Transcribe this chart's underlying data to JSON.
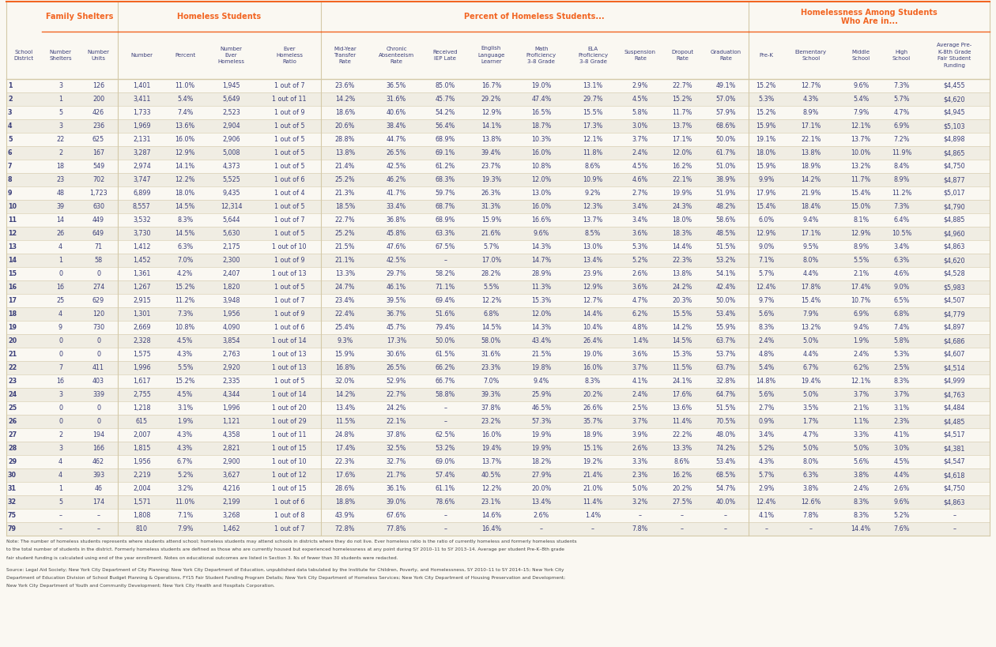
{
  "header_color": "#F26522",
  "bg_color": "#FAF8F2",
  "row_bg_even": "#FAF8F2",
  "row_bg_odd": "#F0EDE3",
  "text_color": "#3B3F7A",
  "line_color": "#D4C9A8",
  "group_defs": [
    [
      1,
      2,
      "Family Shelters"
    ],
    [
      3,
      6,
      "Homeless Students"
    ],
    [
      7,
      15,
      "Percent of Homeless Students..."
    ],
    [
      16,
      20,
      "Homelessness Among Students\nWho Are in..."
    ]
  ],
  "col_header_texts": [
    "School\nDistrict",
    "Number\nShelters",
    "Number\nUnits",
    "Number",
    "Percent",
    "Number\nEver\nHomeless",
    "Ever\nHomeless\nRatio",
    "Mid-Year\nTransfer\nRate",
    "Chronic\nAbsenteeism\nRate",
    "Received\nIEP Late",
    "English\nLanguage\nLearner",
    "Math\nProficiency\n3-8 Grade",
    "ELA\nProficiency\n3-8 Grade",
    "Suspension\nRate",
    "Dropout\nRate",
    "Graduation\nRate",
    "Pre-K",
    "Elementary\nSchool",
    "Middle\nSchool",
    "High\nSchool",
    "Average Pre-\nK-8th Grade\nFair Student\nFunding"
  ],
  "col_widths_raw": [
    26,
    28,
    28,
    36,
    28,
    40,
    46,
    36,
    40,
    32,
    36,
    38,
    38,
    32,
    30,
    34,
    26,
    40,
    34,
    26,
    52
  ],
  "rows": [
    [
      "1",
      "3",
      "126",
      "1,401",
      "11.0%",
      "1,945",
      "1 out of 7",
      "23.6%",
      "36.5%",
      "85.0%",
      "16.7%",
      "19.0%",
      "13.1%",
      "2.9%",
      "22.7%",
      "49.1%",
      "15.2%",
      "12.7%",
      "9.6%",
      "7.3%",
      "$4,455"
    ],
    [
      "2",
      "1",
      "200",
      "3,411",
      "5.4%",
      "5,649",
      "1 out of 11",
      "14.2%",
      "31.6%",
      "45.7%",
      "29.2%",
      "47.4%",
      "29.7%",
      "4.5%",
      "15.2%",
      "57.0%",
      "5.3%",
      "4.3%",
      "5.4%",
      "5.7%",
      "$4,620"
    ],
    [
      "3",
      "5",
      "426",
      "1,733",
      "7.4%",
      "2,523",
      "1 out of 9",
      "18.6%",
      "40.6%",
      "54.2%",
      "12.9%",
      "16.5%",
      "15.5%",
      "5.8%",
      "11.7%",
      "57.9%",
      "15.2%",
      "8.9%",
      "7.9%",
      "4.7%",
      "$4,945"
    ],
    [
      "4",
      "3",
      "236",
      "1,969",
      "13.6%",
      "2,904",
      "1 out of 5",
      "20.6%",
      "38.4%",
      "56.4%",
      "14.1%",
      "18.7%",
      "17.3%",
      "3.0%",
      "13.7%",
      "68.6%",
      "15.9%",
      "17.1%",
      "12.1%",
      "6.9%",
      "$5,103"
    ],
    [
      "5",
      "22",
      "625",
      "2,131",
      "16.0%",
      "2,906",
      "1 out of 5",
      "28.8%",
      "44.7%",
      "68.9%",
      "13.8%",
      "10.3%",
      "12.1%",
      "3.7%",
      "17.1%",
      "50.0%",
      "19.1%",
      "22.1%",
      "13.7%",
      "7.2%",
      "$4,898"
    ],
    [
      "6",
      "2",
      "167",
      "3,287",
      "12.9%",
      "5,008",
      "1 out of 5",
      "13.8%",
      "26.5%",
      "69.1%",
      "39.4%",
      "16.0%",
      "11.8%",
      "2.4%",
      "12.0%",
      "61.7%",
      "18.0%",
      "13.8%",
      "10.0%",
      "11.9%",
      "$4,865"
    ],
    [
      "7",
      "18",
      "549",
      "2,974",
      "14.1%",
      "4,373",
      "1 out of 5",
      "21.4%",
      "42.5%",
      "61.2%",
      "23.7%",
      "10.8%",
      "8.6%",
      "4.5%",
      "16.2%",
      "51.0%",
      "15.9%",
      "18.9%",
      "13.2%",
      "8.4%",
      "$4,750"
    ],
    [
      "8",
      "23",
      "702",
      "3,747",
      "12.2%",
      "5,525",
      "1 out of 6",
      "25.2%",
      "46.2%",
      "68.3%",
      "19.3%",
      "12.0%",
      "10.9%",
      "4.6%",
      "22.1%",
      "38.9%",
      "9.9%",
      "14.2%",
      "11.7%",
      "8.9%",
      "$4,877"
    ],
    [
      "9",
      "48",
      "1,723",
      "6,899",
      "18.0%",
      "9,435",
      "1 out of 4",
      "21.3%",
      "41.7%",
      "59.7%",
      "26.3%",
      "13.0%",
      "9.2%",
      "2.7%",
      "19.9%",
      "51.9%",
      "17.9%",
      "21.9%",
      "15.4%",
      "11.2%",
      "$5,017"
    ],
    [
      "10",
      "39",
      "630",
      "8,557",
      "14.5%",
      "12,314",
      "1 out of 5",
      "18.5%",
      "33.4%",
      "68.7%",
      "31.3%",
      "16.0%",
      "12.3%",
      "3.4%",
      "24.3%",
      "48.2%",
      "15.4%",
      "18.4%",
      "15.0%",
      "7.3%",
      "$4,790"
    ],
    [
      "11",
      "14",
      "449",
      "3,532",
      "8.3%",
      "5,644",
      "1 out of 7",
      "22.7%",
      "36.8%",
      "68.9%",
      "15.9%",
      "16.6%",
      "13.7%",
      "3.4%",
      "18.0%",
      "58.6%",
      "6.0%",
      "9.4%",
      "8.1%",
      "6.4%",
      "$4,885"
    ],
    [
      "12",
      "26",
      "649",
      "3,730",
      "14.5%",
      "5,630",
      "1 out of 5",
      "25.2%",
      "45.8%",
      "63.3%",
      "21.6%",
      "9.6%",
      "8.5%",
      "3.6%",
      "18.3%",
      "48.5%",
      "12.9%",
      "17.1%",
      "12.9%",
      "10.5%",
      "$4,960"
    ],
    [
      "13",
      "4",
      "71",
      "1,412",
      "6.3%",
      "2,175",
      "1 out of 10",
      "21.5%",
      "47.6%",
      "67.5%",
      "5.7%",
      "14.3%",
      "13.0%",
      "5.3%",
      "14.4%",
      "51.5%",
      "9.0%",
      "9.5%",
      "8.9%",
      "3.4%",
      "$4,863"
    ],
    [
      "14",
      "1",
      "58",
      "1,452",
      "7.0%",
      "2,300",
      "1 out of 9",
      "21.1%",
      "42.5%",
      "–",
      "17.0%",
      "14.7%",
      "13.4%",
      "5.2%",
      "22.3%",
      "53.2%",
      "7.1%",
      "8.0%",
      "5.5%",
      "6.3%",
      "$4,620"
    ],
    [
      "15",
      "0",
      "0",
      "1,361",
      "4.2%",
      "2,407",
      "1 out of 13",
      "13.3%",
      "29.7%",
      "58.2%",
      "28.2%",
      "28.9%",
      "23.9%",
      "2.6%",
      "13.8%",
      "54.1%",
      "5.7%",
      "4.4%",
      "2.1%",
      "4.6%",
      "$4,528"
    ],
    [
      "16",
      "16",
      "274",
      "1,267",
      "15.2%",
      "1,820",
      "1 out of 5",
      "24.7%",
      "46.1%",
      "71.1%",
      "5.5%",
      "11.3%",
      "12.9%",
      "3.6%",
      "24.2%",
      "42.4%",
      "12.4%",
      "17.8%",
      "17.4%",
      "9.0%",
      "$5,983"
    ],
    [
      "17",
      "25",
      "629",
      "2,915",
      "11.2%",
      "3,948",
      "1 out of 7",
      "23.4%",
      "39.5%",
      "69.4%",
      "12.2%",
      "15.3%",
      "12.7%",
      "4.7%",
      "20.3%",
      "50.0%",
      "9.7%",
      "15.4%",
      "10.7%",
      "6.5%",
      "$4,507"
    ],
    [
      "18",
      "4",
      "120",
      "1,301",
      "7.3%",
      "1,956",
      "1 out of 9",
      "22.4%",
      "36.7%",
      "51.6%",
      "6.8%",
      "12.0%",
      "14.4%",
      "6.2%",
      "15.5%",
      "53.4%",
      "5.6%",
      "7.9%",
      "6.9%",
      "6.8%",
      "$4,779"
    ],
    [
      "19",
      "9",
      "730",
      "2,669",
      "10.8%",
      "4,090",
      "1 out of 6",
      "25.4%",
      "45.7%",
      "79.4%",
      "14.5%",
      "14.3%",
      "10.4%",
      "4.8%",
      "14.2%",
      "55.9%",
      "8.3%",
      "13.2%",
      "9.4%",
      "7.4%",
      "$4,897"
    ],
    [
      "20",
      "0",
      "0",
      "2,328",
      "4.5%",
      "3,854",
      "1 out of 14",
      "9.3%",
      "17.3%",
      "50.0%",
      "58.0%",
      "43.4%",
      "26.4%",
      "1.4%",
      "14.5%",
      "63.7%",
      "2.4%",
      "5.0%",
      "1.9%",
      "5.8%",
      "$4,686"
    ],
    [
      "21",
      "0",
      "0",
      "1,575",
      "4.3%",
      "2,763",
      "1 out of 13",
      "15.9%",
      "30.6%",
      "61.5%",
      "31.6%",
      "21.5%",
      "19.0%",
      "3.6%",
      "15.3%",
      "53.7%",
      "4.8%",
      "4.4%",
      "2.4%",
      "5.3%",
      "$4,607"
    ],
    [
      "22",
      "7",
      "411",
      "1,996",
      "5.5%",
      "2,920",
      "1 out of 13",
      "16.8%",
      "26.5%",
      "66.2%",
      "23.3%",
      "19.8%",
      "16.0%",
      "3.7%",
      "11.5%",
      "63.7%",
      "5.4%",
      "6.7%",
      "6.2%",
      "2.5%",
      "$4,514"
    ],
    [
      "23",
      "16",
      "403",
      "1,617",
      "15.2%",
      "2,335",
      "1 out of 5",
      "32.0%",
      "52.9%",
      "66.7%",
      "7.0%",
      "9.4%",
      "8.3%",
      "4.1%",
      "24.1%",
      "32.8%",
      "14.8%",
      "19.4%",
      "12.1%",
      "8.3%",
      "$4,999"
    ],
    [
      "24",
      "3",
      "339",
      "2,755",
      "4.5%",
      "4,344",
      "1 out of 14",
      "14.2%",
      "22.7%",
      "58.8%",
      "39.3%",
      "25.9%",
      "20.2%",
      "2.4%",
      "17.6%",
      "64.7%",
      "5.6%",
      "5.0%",
      "3.7%",
      "3.7%",
      "$4,763"
    ],
    [
      "25",
      "0",
      "0",
      "1,218",
      "3.1%",
      "1,996",
      "1 out of 20",
      "13.4%",
      "24.2%",
      "–",
      "37.8%",
      "46.5%",
      "26.6%",
      "2.5%",
      "13.6%",
      "51.5%",
      "2.7%",
      "3.5%",
      "2.1%",
      "3.1%",
      "$4,484"
    ],
    [
      "26",
      "0",
      "0",
      "615",
      "1.9%",
      "1,121",
      "1 out of 29",
      "11.5%",
      "22.1%",
      "–",
      "23.2%",
      "57.3%",
      "35.7%",
      "3.7%",
      "11.4%",
      "70.5%",
      "0.9%",
      "1.7%",
      "1.1%",
      "2.3%",
      "$4,485"
    ],
    [
      "27",
      "2",
      "194",
      "2,007",
      "4.3%",
      "4,358",
      "1 out of 11",
      "24.8%",
      "37.8%",
      "62.5%",
      "16.0%",
      "19.9%",
      "18.9%",
      "3.9%",
      "22.2%",
      "48.0%",
      "3.4%",
      "4.7%",
      "3.3%",
      "4.1%",
      "$4,517"
    ],
    [
      "28",
      "3",
      "166",
      "1,815",
      "4.3%",
      "2,821",
      "1 out of 15",
      "17.4%",
      "32.5%",
      "53.2%",
      "19.4%",
      "19.9%",
      "15.1%",
      "2.6%",
      "13.3%",
      "74.2%",
      "5.2%",
      "5.0%",
      "5.0%",
      "3.0%",
      "$4,381"
    ],
    [
      "29",
      "4",
      "462",
      "1,956",
      "6.7%",
      "2,900",
      "1 out of 10",
      "22.3%",
      "32.7%",
      "69.0%",
      "13.7%",
      "18.2%",
      "19.2%",
      "3.3%",
      "8.6%",
      "53.4%",
      "4.3%",
      "8.0%",
      "5.6%",
      "4.5%",
      "$4,547"
    ],
    [
      "30",
      "4",
      "393",
      "2,219",
      "5.2%",
      "3,627",
      "1 out of 12",
      "17.6%",
      "21.7%",
      "57.4%",
      "40.5%",
      "27.9%",
      "21.4%",
      "2.3%",
      "16.2%",
      "68.5%",
      "5.7%",
      "6.3%",
      "3.8%",
      "4.4%",
      "$4,618"
    ],
    [
      "31",
      "1",
      "46",
      "2,004",
      "3.2%",
      "4,216",
      "1 out of 15",
      "28.6%",
      "36.1%",
      "61.1%",
      "12.2%",
      "20.0%",
      "21.0%",
      "5.0%",
      "20.2%",
      "54.7%",
      "2.9%",
      "3.8%",
      "2.4%",
      "2.6%",
      "$4,750"
    ],
    [
      "32",
      "5",
      "174",
      "1,571",
      "11.0%",
      "2,199",
      "1 out of 6",
      "18.8%",
      "39.0%",
      "78.6%",
      "23.1%",
      "13.4%",
      "11.4%",
      "3.2%",
      "27.5%",
      "40.0%",
      "12.4%",
      "12.6%",
      "8.3%",
      "9.6%",
      "$4,863"
    ],
    [
      "75",
      "–",
      "–",
      "1,808",
      "7.1%",
      "3,268",
      "1 out of 8",
      "43.9%",
      "67.6%",
      "–",
      "14.6%",
      "2.6%",
      "1.4%",
      "–",
      "–",
      "–",
      "4.1%",
      "7.8%",
      "8.3%",
      "5.2%",
      "–"
    ],
    [
      "79",
      "–",
      "–",
      "810",
      "7.9%",
      "1,462",
      "1 out of 7",
      "72.8%",
      "77.8%",
      "–",
      "16.4%",
      "–",
      "–",
      "7.8%",
      "–",
      "–",
      "–",
      "–",
      "14.4%",
      "7.6%",
      "–"
    ]
  ],
  "note_line1": "Note: The number of homeless students represents where students attend school; homeless students may attend schools in districts where they do not live. Ever homeless ratio is the ratio of currently homeless and formerly homeless students",
  "note_line2": "to the total number of students in the district. Formerly homeless students are defined as those who are currently housed but experienced homelessness at any point during SY 2010–11 to SY 2013–14. Average per student Pre-K–8th grade",
  "note_line3": "fair student funding is calculated using end of the year enrollment. Notes on educational outcomes are listed in Section 3. Ns of fewer than 30 students were redacted.",
  "note_line4": "Source: Legal Aid Society; New York City Department of City Planning; New York City Department of Education, unpublished data tabulated by the Institute for Children, Poverty, and Homelessness, SY 2010–11 to SY 2014–15; New York City",
  "note_line5": "Department of Education Division of School Budget Planning & Operations, FY15 Fair Student Funding Program Details; New York City Department of Homeless Services; New York City Department of Housing Preservation and Development;",
  "note_line6": "New York City Department of Youth and Community Development; New York City Health and Hospitals Corporation."
}
